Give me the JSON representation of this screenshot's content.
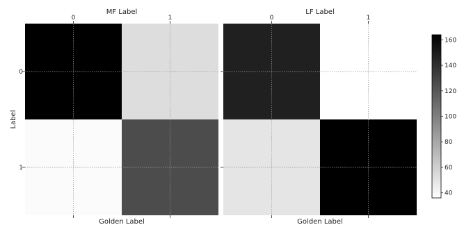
{
  "chart_data": {
    "type": "heatmap",
    "colormap": {
      "low_color": "#ffffff",
      "high_color": "#000000",
      "vmin": 36,
      "vmax": 164
    },
    "panels": [
      {
        "title": "MF Label",
        "xlabel": "Golden Label",
        "ylabel": "Label",
        "x_ticks": [
          "0",
          "1"
        ],
        "y_ticks": [
          "0",
          "1"
        ],
        "values": [
          [
            164,
            53
          ],
          [
            38,
            126
          ]
        ]
      },
      {
        "title": "LF Label",
        "xlabel": "Golden Label",
        "ylabel": "",
        "x_ticks": [
          "0",
          "1"
        ],
        "y_ticks": [],
        "values": [
          [
            148,
            36
          ],
          [
            49,
            164
          ]
        ]
      }
    ],
    "colorbar": {
      "ticks": [
        "160",
        "140",
        "120",
        "100",
        "80",
        "60",
        "40"
      ],
      "tick_values": [
        160,
        140,
        120,
        100,
        80,
        60,
        40
      ]
    },
    "grid": true
  }
}
